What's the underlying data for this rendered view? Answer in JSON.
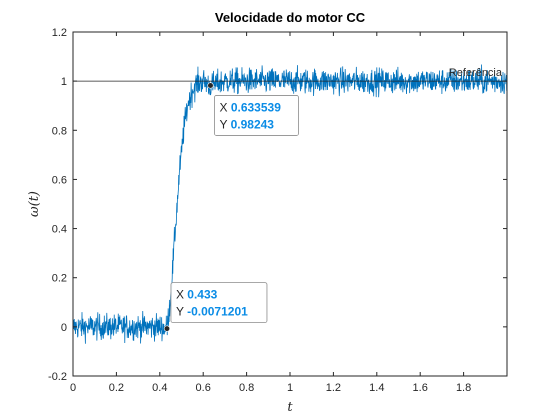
{
  "chart_data": {
    "type": "line",
    "title": "Velocidade do motor CC",
    "xlabel": "t",
    "ylabel": "ω(t)",
    "xlim": [
      0,
      2
    ],
    "ylim": [
      -0.2,
      1.2
    ],
    "xticks": [
      "0",
      "0.2",
      "0.4",
      "0.6",
      "0.8",
      "1",
      "1.2",
      "1.4",
      "1.6",
      "1.8"
    ],
    "xtick_values": [
      0,
      0.2,
      0.4,
      0.6,
      0.8,
      1.0,
      1.2,
      1.4,
      1.6,
      1.8
    ],
    "yticks": [
      "-0.2",
      "0",
      "0.2",
      "0.4",
      "0.6",
      "0.8",
      "1",
      "1.2"
    ],
    "ytick_values": [
      -0.2,
      0,
      0.2,
      0.4,
      0.6,
      0.8,
      1.0,
      1.2
    ],
    "grid": false,
    "series": [
      {
        "color": "#0072bd",
        "x": [
          0,
          0.05,
          0.1,
          0.15,
          0.2,
          0.25,
          0.3,
          0.35,
          0.4,
          0.433,
          0.45,
          0.47,
          0.49,
          0.51,
          0.53,
          0.55,
          0.57,
          0.6,
          0.633,
          0.7,
          0.8,
          0.9,
          1.0,
          1.1,
          1.2,
          1.3,
          1.4,
          1.5,
          1.6,
          1.7,
          1.8,
          1.9,
          2.0
        ],
        "y": [
          0,
          0,
          0,
          0,
          0,
          0,
          0,
          0,
          0,
          -0.007,
          0.12,
          0.38,
          0.62,
          0.8,
          0.91,
          0.96,
          0.99,
          1.0,
          0.982,
          1.0,
          1.0,
          1.0,
          1.0,
          1.0,
          1.0,
          1.0,
          1.0,
          1.0,
          1.0,
          1.0,
          1.0,
          1.0,
          1.0
        ],
        "noise_amplitude": 0.05
      }
    ],
    "reference_line": {
      "y": 1,
      "label": "Referência",
      "color": "#262626"
    },
    "datatips": [
      {
        "x_label": "X",
        "y_label": "Y",
        "x_value": "0.633539",
        "y_value": "0.98243",
        "x": 0.633539,
        "y": 0.98243
      },
      {
        "x_label": "X",
        "y_label": "Y",
        "x_value": "0.433",
        "y_value": "-0.0071201",
        "x": 0.433,
        "y": -0.0071201
      }
    ]
  }
}
